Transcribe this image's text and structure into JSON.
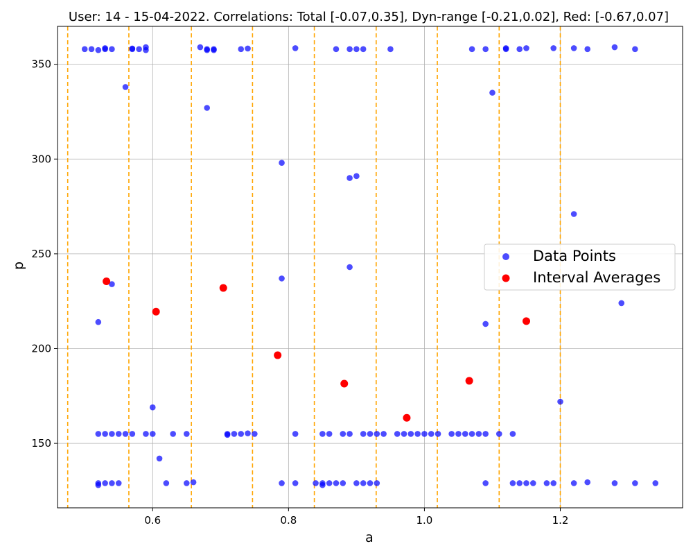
{
  "chart_data": {
    "type": "scatter",
    "title": "User: 14 - 15-04-2022. Correlations: Total [-0.07,0.35], Dyn-range [-0.21,0.02], Red: [-0.67,0.07]",
    "xlabel": "a",
    "ylabel": "p",
    "xlim": [
      0.46,
      1.38
    ],
    "ylim": [
      116,
      370
    ],
    "xticks": [
      0.6,
      0.8,
      1.0,
      1.2
    ],
    "yticks": [
      150,
      200,
      250,
      300,
      350
    ],
    "grid": true,
    "legend_position": "center-right",
    "vlines": [
      0.475,
      0.565,
      0.657,
      0.747,
      0.838,
      0.929,
      1.019,
      1.11,
      1.2
    ],
    "vline_color": "#ffa500",
    "series": [
      {
        "name": "Data Points",
        "color": "#0000ff",
        "points": [
          [
            0.5,
            358
          ],
          [
            0.51,
            358
          ],
          [
            0.52,
            357.5
          ],
          [
            0.53,
            358.5
          ],
          [
            0.53,
            358
          ],
          [
            0.54,
            358
          ],
          [
            0.57,
            358.3
          ],
          [
            0.57,
            358
          ],
          [
            0.58,
            358
          ],
          [
            0.59,
            359
          ],
          [
            0.59,
            357.5
          ],
          [
            0.56,
            338
          ],
          [
            0.52,
            214
          ],
          [
            0.54,
            234
          ],
          [
            0.6,
            169
          ],
          [
            0.61,
            142
          ],
          [
            0.52,
            155
          ],
          [
            0.53,
            155
          ],
          [
            0.54,
            155
          ],
          [
            0.55,
            155
          ],
          [
            0.56,
            155
          ],
          [
            0.57,
            155
          ],
          [
            0.59,
            155
          ],
          [
            0.6,
            155
          ],
          [
            0.63,
            155
          ],
          [
            0.65,
            155
          ],
          [
            0.52,
            129
          ],
          [
            0.52,
            128
          ],
          [
            0.53,
            129
          ],
          [
            0.54,
            129
          ],
          [
            0.55,
            129
          ],
          [
            0.62,
            129
          ],
          [
            0.65,
            129
          ],
          [
            0.66,
            129.5
          ],
          [
            0.67,
            359
          ],
          [
            0.68,
            358
          ],
          [
            0.68,
            357.5
          ],
          [
            0.69,
            358
          ],
          [
            0.69,
            357.5
          ],
          [
            0.73,
            358
          ],
          [
            0.74,
            358.3
          ],
          [
            0.68,
            327
          ],
          [
            0.71,
            155
          ],
          [
            0.71,
            154.5
          ],
          [
            0.72,
            155
          ],
          [
            0.73,
            155
          ],
          [
            0.74,
            155.3
          ],
          [
            0.75,
            155
          ],
          [
            0.79,
            298
          ],
          [
            0.79,
            237
          ],
          [
            0.79,
            129
          ],
          [
            0.81,
            358.5
          ],
          [
            0.81,
            155
          ],
          [
            0.81,
            129
          ],
          [
            0.84,
            129
          ],
          [
            0.85,
            129
          ],
          [
            0.85,
            128
          ],
          [
            0.85,
            155
          ],
          [
            0.86,
            155
          ],
          [
            0.86,
            129
          ],
          [
            0.87,
            129
          ],
          [
            0.87,
            358
          ],
          [
            0.88,
            155
          ],
          [
            0.88,
            129
          ],
          [
            0.89,
            358
          ],
          [
            0.89,
            155
          ],
          [
            0.89,
            290
          ],
          [
            0.89,
            243
          ],
          [
            0.9,
            358
          ],
          [
            0.9,
            291
          ],
          [
            0.9,
            129
          ],
          [
            0.91,
            358
          ],
          [
            0.91,
            155
          ],
          [
            0.91,
            129
          ],
          [
            0.92,
            155
          ],
          [
            0.92,
            129
          ],
          [
            0.93,
            155
          ],
          [
            0.93,
            129
          ],
          [
            0.94,
            155
          ],
          [
            0.95,
            358
          ],
          [
            0.96,
            155
          ],
          [
            0.97,
            155
          ],
          [
            0.98,
            155
          ],
          [
            0.99,
            155
          ],
          [
            1.0,
            155
          ],
          [
            1.01,
            155
          ],
          [
            1.02,
            155
          ],
          [
            1.04,
            155
          ],
          [
            1.05,
            155
          ],
          [
            1.06,
            155
          ],
          [
            1.07,
            155
          ],
          [
            1.07,
            358
          ],
          [
            1.08,
            155
          ],
          [
            1.09,
            155
          ],
          [
            1.09,
            358
          ],
          [
            1.09,
            213
          ],
          [
            1.09,
            129
          ],
          [
            1.1,
            335
          ],
          [
            1.11,
            155
          ],
          [
            1.12,
            358.5
          ],
          [
            1.12,
            358
          ],
          [
            1.13,
            155
          ],
          [
            1.13,
            129
          ],
          [
            1.14,
            358
          ],
          [
            1.14,
            129
          ],
          [
            1.15,
            358.5
          ],
          [
            1.15,
            129
          ],
          [
            1.16,
            129
          ],
          [
            1.18,
            129
          ],
          [
            1.19,
            358.5
          ],
          [
            1.19,
            129
          ],
          [
            1.2,
            172
          ],
          [
            1.22,
            358.5
          ],
          [
            1.22,
            271
          ],
          [
            1.22,
            129
          ],
          [
            1.24,
            358
          ],
          [
            1.24,
            129.5
          ],
          [
            1.28,
            359
          ],
          [
            1.28,
            129
          ],
          [
            1.29,
            224
          ],
          [
            1.31,
            358
          ],
          [
            1.31,
            129
          ],
          [
            1.34,
            129
          ]
        ]
      },
      {
        "name": "Interval Averages",
        "color": "#ff0000",
        "points": [
          [
            0.532,
            235.5
          ],
          [
            0.605,
            219.5
          ],
          [
            0.704,
            232
          ],
          [
            0.784,
            196.5
          ],
          [
            0.882,
            181.5
          ],
          [
            0.974,
            163.5
          ],
          [
            1.066,
            183
          ],
          [
            1.15,
            214.5
          ]
        ]
      }
    ]
  }
}
